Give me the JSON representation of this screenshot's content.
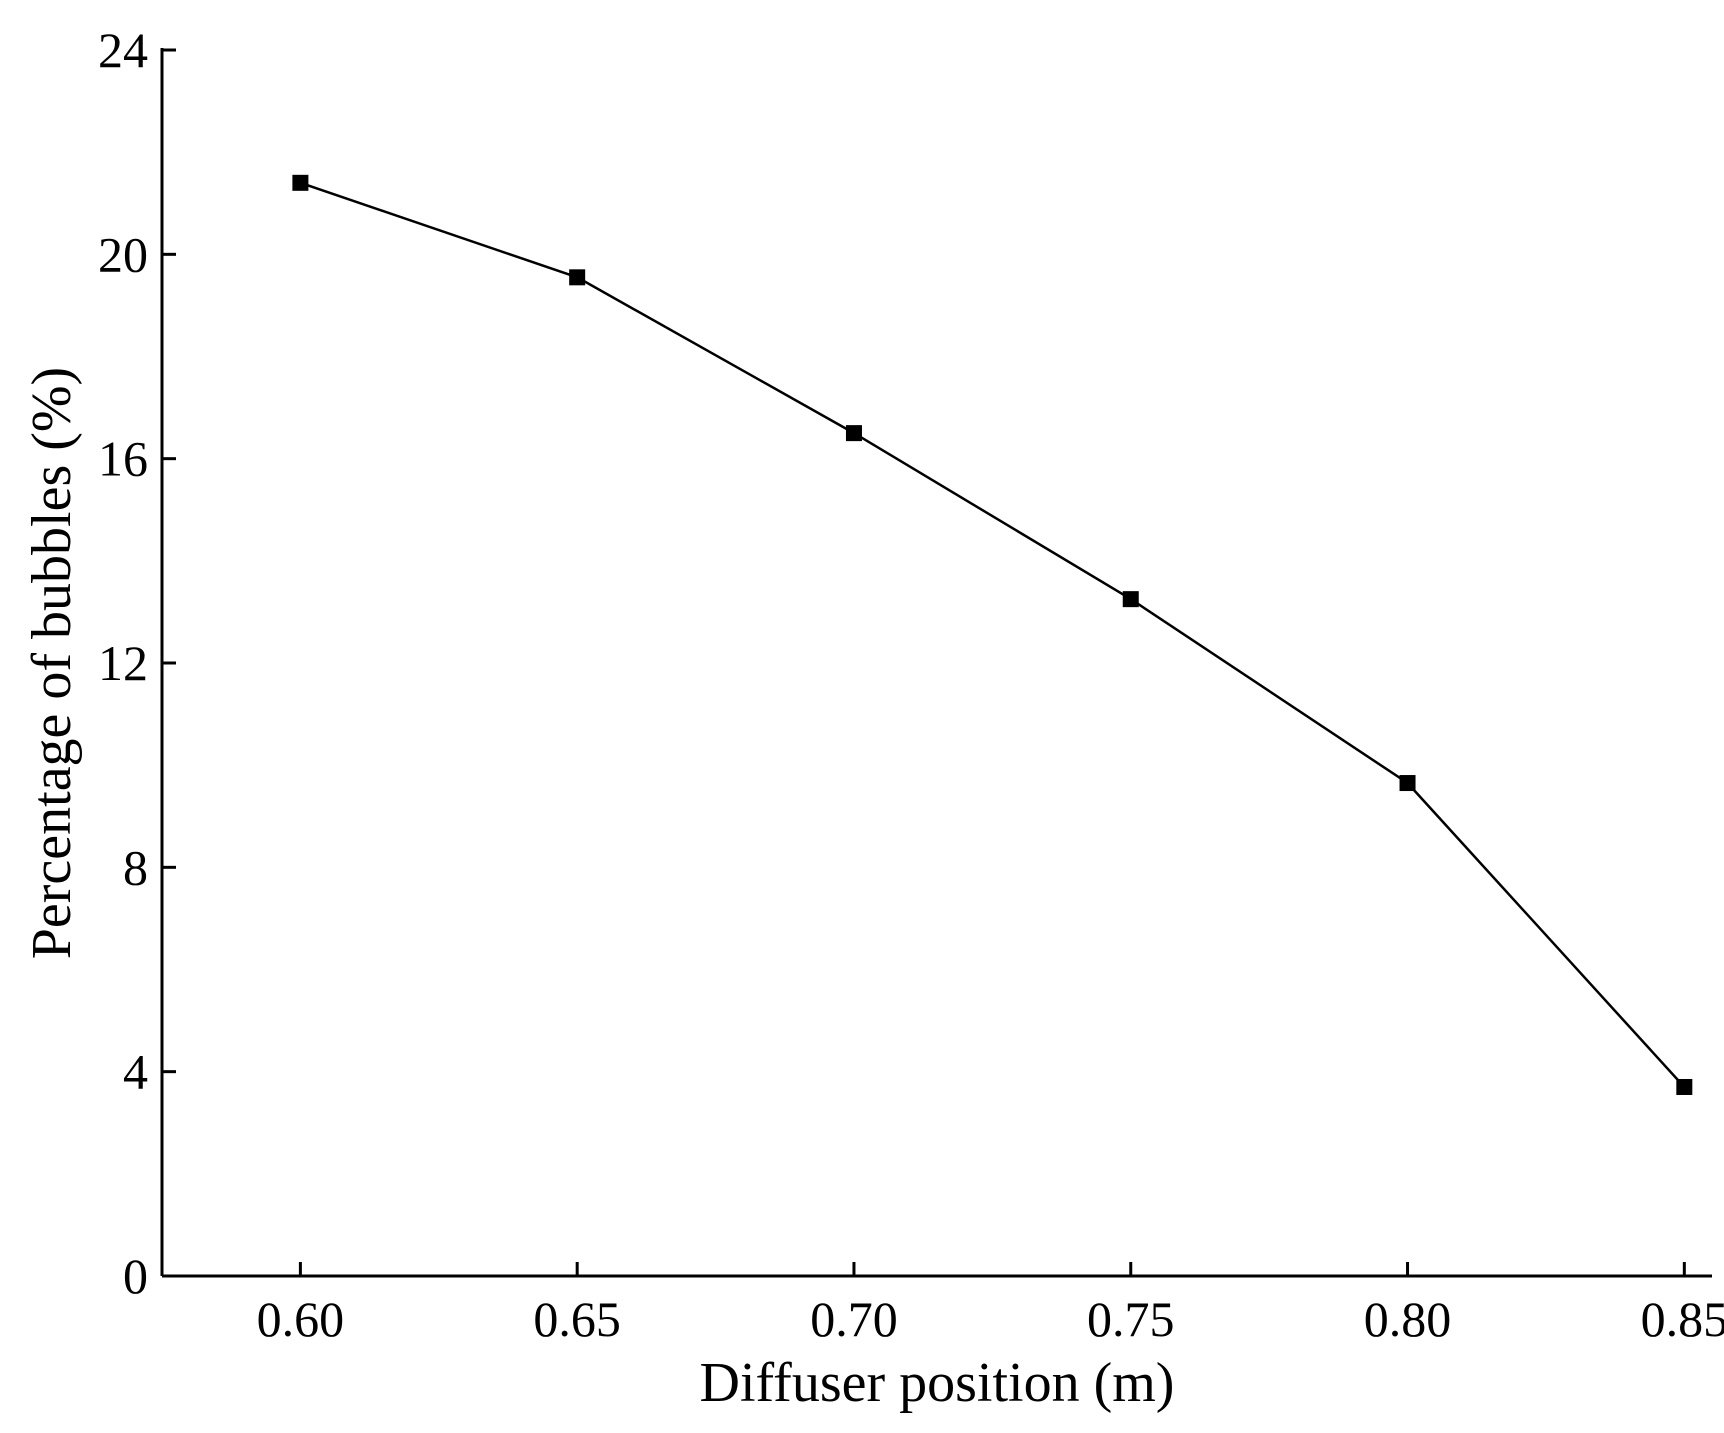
{
  "chart_data": {
    "type": "line",
    "xlabel": "Diffuser position (m)",
    "ylabel": "Percentage of bubbles (%)",
    "xlim": [
      0.575,
      0.855
    ],
    "ylim": [
      0,
      24
    ],
    "x_ticks": [
      "0.60",
      "0.65",
      "0.70",
      "0.75",
      "0.80",
      "0.85"
    ],
    "y_ticks": [
      "0",
      "4",
      "8",
      "12",
      "16",
      "20",
      "24"
    ],
    "grid": false,
    "marker": "square",
    "line_color": "#000000",
    "series": [
      {
        "x": [
          0.6,
          0.65,
          0.7,
          0.75,
          0.8,
          0.85
        ],
        "values": [
          21.4,
          19.55,
          16.5,
          13.25,
          9.65,
          3.7
        ]
      }
    ]
  }
}
